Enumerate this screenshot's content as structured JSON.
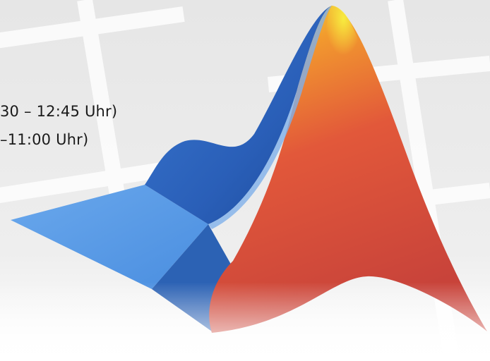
{
  "lines": [
    "30 – 12:45 Uhr)",
    "–11:00 Uhr)"
  ]
}
